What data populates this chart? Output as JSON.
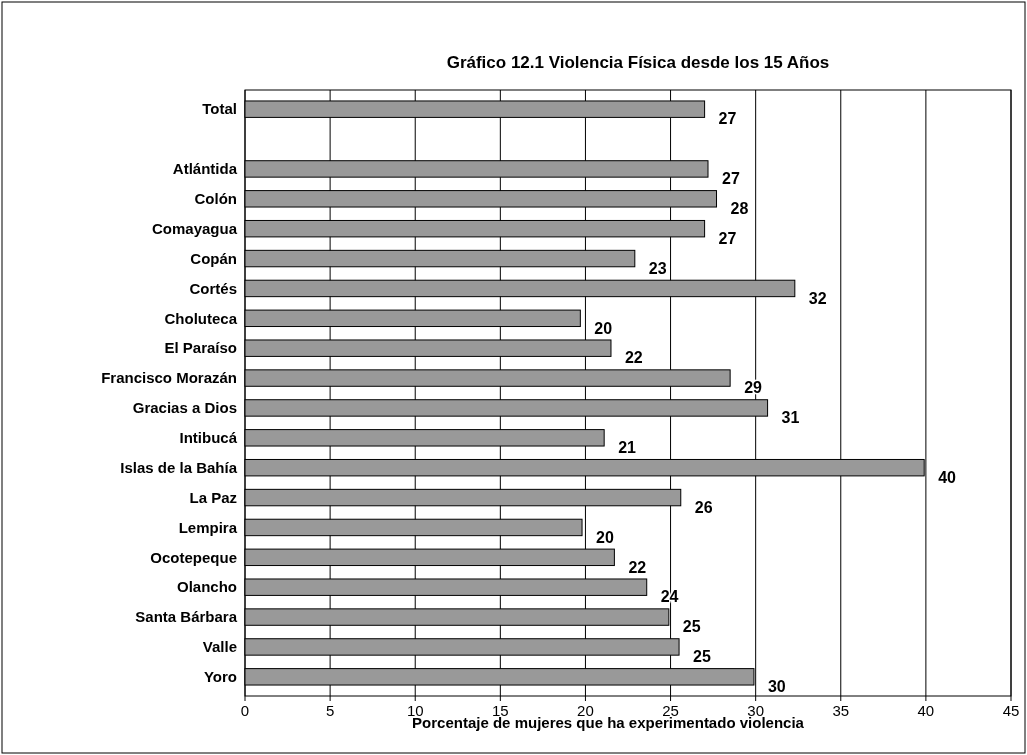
{
  "chart_data": {
    "type": "bar",
    "orientation": "horizontal",
    "title": "Gráfico 12.1  Violencia  Física desde los 15 Años",
    "xlabel": "Porcentaje de mujeres que ha experimentado violencia",
    "categories": [
      "Total",
      null,
      "Atlántida",
      "Colón",
      "Comayagua",
      "Copán",
      "Cortés",
      "Choluteca",
      "El Paraíso",
      "Francisco Morazán",
      "Gracias a Dios",
      "Intibucá",
      "Islas de la Bahía",
      "La Paz",
      "Lempira",
      "Ocotepeque",
      "Olancho",
      "Santa Bárbara",
      "Valle",
      "Yoro"
    ],
    "values": [
      27.0,
      null,
      27.2,
      27.7,
      27.0,
      22.9,
      32.3,
      19.7,
      21.5,
      28.5,
      30.7,
      21.1,
      39.9,
      25.6,
      19.8,
      21.7,
      23.6,
      24.9,
      25.5,
      29.9
    ],
    "value_labels": [
      "27",
      null,
      "27",
      "28",
      "27",
      "23",
      "32",
      "20",
      "22",
      "29",
      "31",
      "21",
      "40",
      "26",
      "20",
      "22",
      "24",
      "25",
      "25",
      "30"
    ],
    "color": "#999999",
    "xlim": [
      0,
      45
    ],
    "xticks": [
      0,
      5,
      10,
      15,
      20,
      25,
      30,
      35,
      40,
      45
    ],
    "grid": "x"
  }
}
